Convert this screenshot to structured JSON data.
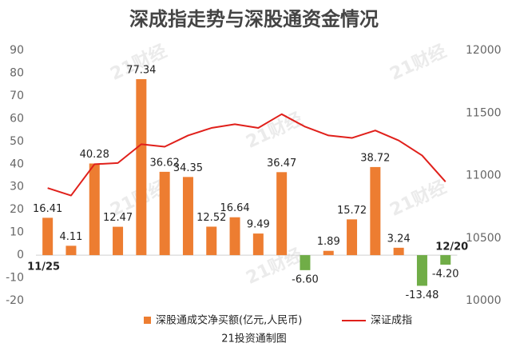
{
  "chart_data": {
    "type": "bar_line",
    "title": "深成指走势与深股通资金情况",
    "source": "21投资通制图",
    "watermark": "21财经",
    "categories": [
      "11/25",
      null,
      null,
      null,
      null,
      null,
      null,
      null,
      null,
      null,
      null,
      null,
      null,
      null,
      null,
      null,
      null,
      "12/20"
    ],
    "series": [
      {
        "name": "深股通成交净买额(亿元,人民币)",
        "type": "bar",
        "color": "#ed7d31",
        "negative_color": "#70ad47",
        "values": [
          16.41,
          4.11,
          40.28,
          12.47,
          77.34,
          36.62,
          34.35,
          12.52,
          16.64,
          9.49,
          36.47,
          -6.6,
          1.89,
          15.72,
          38.72,
          3.24,
          -13.48,
          -4.2
        ],
        "value_labels": [
          "16.41",
          "4.11",
          "40.28",
          "12.47",
          "77.34",
          "36.62",
          "34.35",
          "12.52",
          "16.64",
          "9.49",
          "36.47",
          "-6.60",
          "1.89",
          "15.72",
          "38.72",
          "3.24",
          "-13.48",
          "-4.20"
        ]
      },
      {
        "name": "深证成指",
        "type": "line",
        "axis": "y2",
        "color": "#e0201b",
        "values": [
          10900,
          10840,
          11090,
          11100,
          11250,
          11230,
          11320,
          11380,
          11410,
          11380,
          11490,
          11390,
          11320,
          11300,
          11360,
          11280,
          11160,
          10950
        ]
      }
    ],
    "ylim": [
      -20,
      90
    ],
    "yticks": [
      -20,
      -10,
      0,
      10,
      20,
      30,
      40,
      50,
      60,
      70,
      80,
      90
    ],
    "y2lim": [
      10000,
      12000
    ],
    "y2ticks": [
      10000,
      10500,
      11000,
      11500,
      12000
    ]
  }
}
